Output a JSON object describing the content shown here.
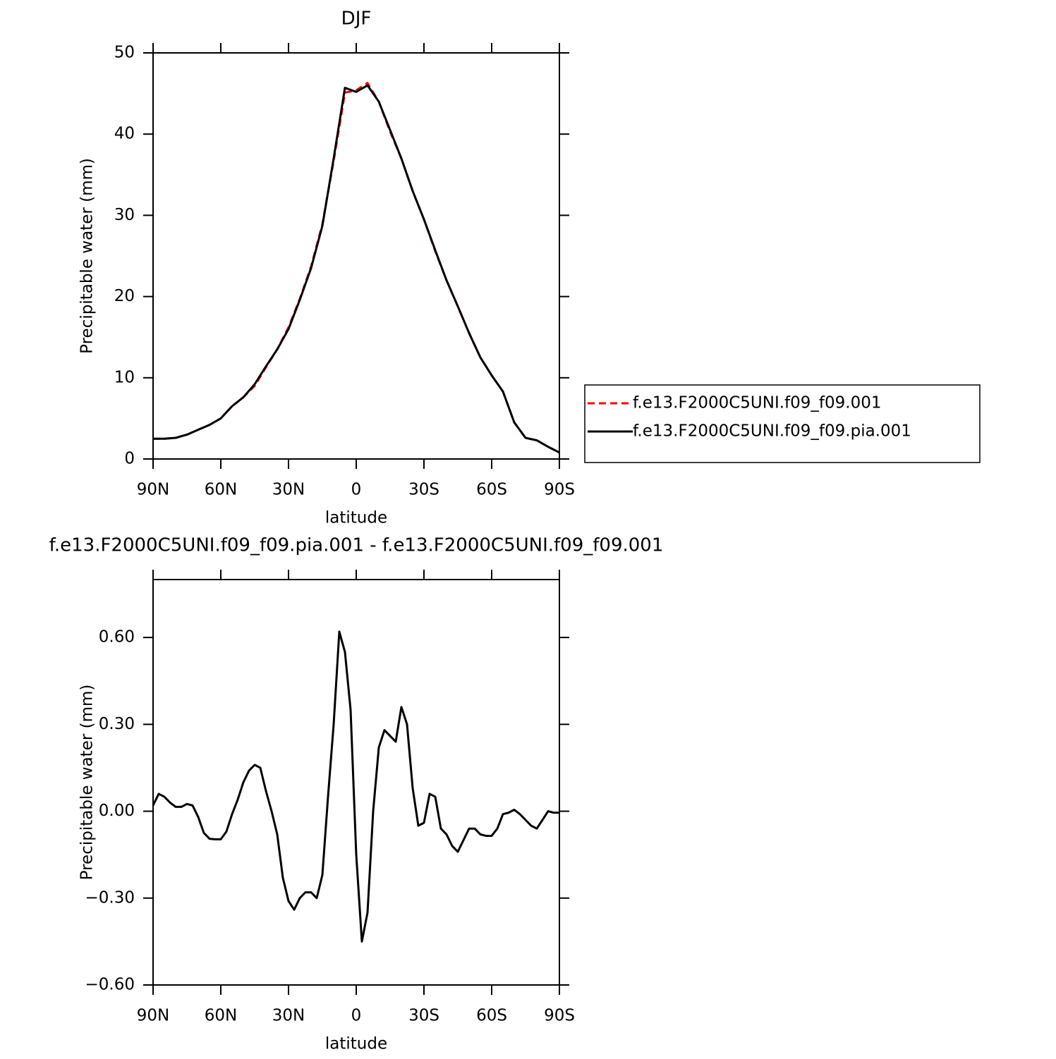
{
  "chart_data": [
    {
      "type": "line",
      "title": "DJF",
      "xlabel": "latitude",
      "ylabel": "Precipitable water (mm)",
      "x": [
        90,
        85,
        80,
        75,
        70,
        65,
        60,
        55,
        50,
        45,
        40,
        35,
        30,
        25,
        20,
        15,
        10,
        5,
        0,
        -5,
        -10,
        -15,
        -20,
        -25,
        -30,
        -35,
        -40,
        -45,
        -50,
        -55,
        -60,
        -65,
        -70,
        -75,
        -80,
        -85,
        -90
      ],
      "series": [
        {
          "name": "f.e13.F2000C5UNI.f09_f09.001",
          "color": "#ff0000",
          "style": "dashed",
          "values": [
            2.5,
            2.5,
            2.6,
            3.0,
            3.6,
            4.2,
            5.0,
            6.5,
            7.6,
            9.0,
            11.3,
            13.5,
            16.2,
            19.7,
            23.7,
            28.9,
            36.7,
            45.1,
            45.4,
            46.3,
            44.0,
            40.3,
            37.0,
            33.0,
            29.5,
            25.6,
            22.0,
            18.8,
            15.5,
            12.5,
            10.3,
            8.3,
            4.5,
            2.6,
            2.3,
            1.5,
            0.8
          ]
        },
        {
          "name": "f.e13.F2000C5UNI.f09_f09.pia.001",
          "color": "#000000",
          "style": "solid",
          "values": [
            2.5,
            2.5,
            2.6,
            3.0,
            3.6,
            4.2,
            5.0,
            6.5,
            7.6,
            9.2,
            11.4,
            13.5,
            16.0,
            19.6,
            23.5,
            28.7,
            37.0,
            45.7,
            45.2,
            46.0,
            44.0,
            40.5,
            37.0,
            33.0,
            29.5,
            25.7,
            22.0,
            18.8,
            15.5,
            12.5,
            10.3,
            8.3,
            4.5,
            2.6,
            2.3,
            1.5,
            0.8
          ]
        }
      ],
      "xlim": [
        90,
        -90
      ],
      "xticks": [
        {
          "value": 90,
          "label": "90N"
        },
        {
          "value": 60,
          "label": "60N"
        },
        {
          "value": 30,
          "label": "30N"
        },
        0,
        {
          "value": -30,
          "label": "30S"
        },
        {
          "value": -60,
          "label": "60S"
        },
        {
          "value": -90,
          "label": "90S"
        }
      ],
      "ylim": [
        0,
        50
      ],
      "yticks": [
        0,
        10,
        20,
        30,
        40,
        50
      ],
      "grid": false,
      "legend": "right"
    },
    {
      "type": "line",
      "title": "f.e13.F2000C5UNI.f09_f09.pia.001 - f.e13.F2000C5UNI.f09_f09.001",
      "xlabel": "latitude",
      "ylabel": "Precipitable water (mm)",
      "x": [
        90,
        87.5,
        85,
        82.5,
        80,
        77.5,
        75,
        72.5,
        70,
        67.5,
        65,
        62.5,
        60,
        57.5,
        55,
        52.5,
        50,
        47.5,
        45,
        42.5,
        40,
        37.5,
        35,
        32.5,
        30,
        27.5,
        25,
        22.5,
        20,
        17.5,
        15,
        12.5,
        10,
        7.5,
        5,
        2.5,
        0,
        -2.5,
        -5,
        -7.5,
        -10,
        -12.5,
        -15,
        -17.5,
        -20,
        -22.5,
        -25,
        -27.5,
        -30,
        -32.5,
        -35,
        -37.5,
        -40,
        -42.5,
        -45,
        -47.5,
        -50,
        -52.5,
        -55,
        -57.5,
        -60,
        -62.5,
        -65,
        -67.5,
        -70,
        -72.5,
        -75,
        -77.5,
        -80,
        -82.5,
        -85,
        -87.5,
        -90
      ],
      "series": [
        {
          "color": "#000000",
          "style": "solid",
          "values": [
            0.02,
            0.06,
            0.05,
            0.03,
            0.015,
            0.015,
            0.025,
            0.02,
            -0.02,
            -0.075,
            -0.095,
            -0.097,
            -0.097,
            -0.07,
            -0.01,
            0.04,
            0.1,
            0.14,
            0.16,
            0.15,
            0.07,
            0.0,
            -0.08,
            -0.23,
            -0.31,
            -0.34,
            -0.3,
            -0.28,
            -0.28,
            -0.3,
            -0.22,
            0.05,
            0.3,
            0.62,
            0.55,
            0.35,
            -0.15,
            -0.45,
            -0.35,
            0.0,
            0.22,
            0.28,
            0.26,
            0.24,
            0.36,
            0.3,
            0.08,
            -0.05,
            -0.04,
            0.06,
            0.05,
            -0.06,
            -0.08,
            -0.12,
            -0.14,
            -0.1,
            -0.06,
            -0.06,
            -0.08,
            -0.085,
            -0.085,
            -0.06,
            -0.01,
            -0.005,
            0.005,
            -0.01,
            -0.03,
            -0.05,
            -0.06,
            -0.03,
            0.0,
            -0.005,
            -0.005
          ]
        }
      ],
      "xlim": [
        90,
        -90
      ],
      "xticks": [
        {
          "value": 90,
          "label": "90N"
        },
        {
          "value": 60,
          "label": "60N"
        },
        {
          "value": 30,
          "label": "30N"
        },
        0,
        {
          "value": -30,
          "label": "30S"
        },
        {
          "value": -60,
          "label": "60S"
        },
        {
          "value": -90,
          "label": "90S"
        }
      ],
      "ylim": [
        -0.6,
        0.8
      ],
      "yticks": [
        {
          "value": -0.6,
          "label": "−0.60"
        },
        {
          "value": -0.3,
          "label": "−0.30"
        },
        {
          "value": 0,
          "label": "0.00"
        },
        {
          "value": 0.3,
          "label": "0.30"
        },
        {
          "value": 0.6,
          "label": "0.60"
        }
      ],
      "grid": false
    }
  ]
}
